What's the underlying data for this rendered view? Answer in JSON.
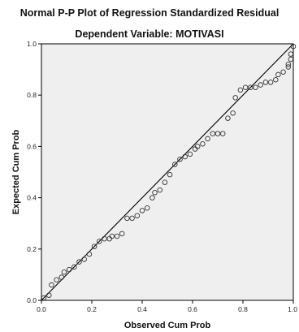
{
  "chart_data": {
    "type": "scatter",
    "title": "Normal P-P Plot of Regression Standardized Residual",
    "subtitle": "Dependent Variable: MOTIVASI",
    "xlabel": "Observed Cum Prob",
    "ylabel": "Expected Cum Prob",
    "xlim": [
      0,
      1
    ],
    "ylim": [
      0,
      1
    ],
    "x_ticks": [
      "0.0",
      "0.2",
      "0.4",
      "0.6",
      "0.8",
      "1.0"
    ],
    "y_ticks": [
      "0.0",
      "0.2",
      "0.4",
      "0.6",
      "0.8",
      "1.0"
    ],
    "reference_line": [
      [
        0,
        0
      ],
      [
        1,
        1
      ]
    ],
    "grid": false,
    "colors": {
      "plot_background": "#efefef",
      "marker": "#333333",
      "line": "#000000"
    },
    "points": [
      [
        0.01,
        0.01
      ],
      [
        0.03,
        0.02
      ],
      [
        0.04,
        0.06
      ],
      [
        0.06,
        0.08
      ],
      [
        0.08,
        0.09
      ],
      [
        0.09,
        0.11
      ],
      [
        0.11,
        0.12
      ],
      [
        0.13,
        0.13
      ],
      [
        0.15,
        0.15
      ],
      [
        0.17,
        0.16
      ],
      [
        0.19,
        0.18
      ],
      [
        0.21,
        0.21
      ],
      [
        0.23,
        0.23
      ],
      [
        0.25,
        0.24
      ],
      [
        0.27,
        0.24
      ],
      [
        0.28,
        0.25
      ],
      [
        0.3,
        0.25
      ],
      [
        0.32,
        0.26
      ],
      [
        0.34,
        0.32
      ],
      [
        0.36,
        0.32
      ],
      [
        0.38,
        0.33
      ],
      [
        0.4,
        0.35
      ],
      [
        0.42,
        0.36
      ],
      [
        0.44,
        0.4
      ],
      [
        0.45,
        0.42
      ],
      [
        0.47,
        0.43
      ],
      [
        0.49,
        0.46
      ],
      [
        0.51,
        0.49
      ],
      [
        0.53,
        0.53
      ],
      [
        0.55,
        0.55
      ],
      [
        0.57,
        0.56
      ],
      [
        0.59,
        0.57
      ],
      [
        0.61,
        0.59
      ],
      [
        0.62,
        0.6
      ],
      [
        0.64,
        0.61
      ],
      [
        0.66,
        0.63
      ],
      [
        0.68,
        0.65
      ],
      [
        0.7,
        0.65
      ],
      [
        0.72,
        0.65
      ],
      [
        0.74,
        0.71
      ],
      [
        0.76,
        0.73
      ],
      [
        0.77,
        0.79
      ],
      [
        0.79,
        0.82
      ],
      [
        0.81,
        0.83
      ],
      [
        0.83,
        0.83
      ],
      [
        0.85,
        0.83
      ],
      [
        0.87,
        0.84
      ],
      [
        0.89,
        0.85
      ],
      [
        0.91,
        0.85
      ],
      [
        0.93,
        0.86
      ],
      [
        0.94,
        0.88
      ],
      [
        0.96,
        0.89
      ],
      [
        0.98,
        0.91
      ],
      [
        0.98,
        0.92
      ],
      [
        0.99,
        0.94
      ],
      [
        0.99,
        0.96
      ],
      [
        1.0,
        0.99
      ]
    ]
  }
}
